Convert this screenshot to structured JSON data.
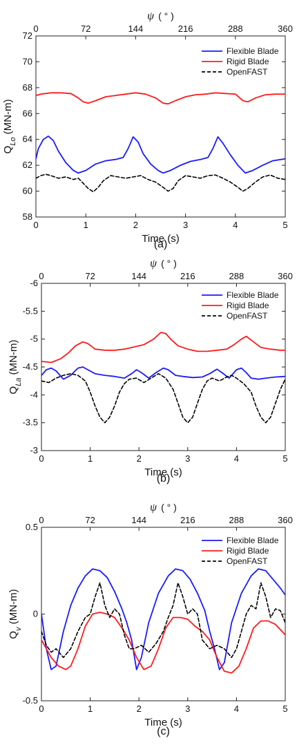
{
  "chart_data": [
    {
      "type": "line",
      "caption": "(a)",
      "xlabel": "Time (s)",
      "ylabel_main": "Q",
      "ylabel_sub": "Lo",
      "ylabel_unit": " (MN-m)",
      "top_axis_symbol": "ψ",
      "top_axis_unit": "( ° )",
      "xlim": [
        0,
        5
      ],
      "ylim": [
        58,
        72
      ],
      "y_reversed": false,
      "xticks": [
        "0",
        "1",
        "2",
        "3",
        "4",
        "5"
      ],
      "yticks": [
        "58",
        "60",
        "62",
        "64",
        "66",
        "68",
        "70",
        "72"
      ],
      "top_ticks": [
        "0",
        "72",
        "144",
        "216",
        "288",
        "360"
      ],
      "colors": {
        "Flexible Blade": "#1a1aff",
        "Rigid Blade": "#ff1a1a",
        "OpenFAST": "#000000"
      },
      "series": [
        {
          "name": "Flexible Blade",
          "x": [
            0,
            0.05,
            0.15,
            0.25,
            0.35,
            0.45,
            0.6,
            0.75,
            0.85,
            1.0,
            1.2,
            1.4,
            1.6,
            1.75,
            1.85,
            1.95,
            2.05,
            2.15,
            2.3,
            2.45,
            2.55,
            2.7,
            2.9,
            3.1,
            3.3,
            3.45,
            3.55,
            3.65,
            3.75,
            3.9,
            4.05,
            4.2,
            4.35,
            4.55,
            4.75,
            5.0
          ],
          "y": [
            62.5,
            63.3,
            64.0,
            64.25,
            63.9,
            63.1,
            62.2,
            61.6,
            61.4,
            61.6,
            62.1,
            62.35,
            62.45,
            62.6,
            63.3,
            64.2,
            63.8,
            62.9,
            62.1,
            61.6,
            61.4,
            61.6,
            62.0,
            62.3,
            62.45,
            62.6,
            63.3,
            64.2,
            63.7,
            62.8,
            62.0,
            61.4,
            61.6,
            62.0,
            62.35,
            62.5
          ]
        },
        {
          "name": "Rigid Blade",
          "x": [
            0,
            0.1,
            0.3,
            0.5,
            0.7,
            0.85,
            0.95,
            1.05,
            1.2,
            1.4,
            1.6,
            1.8,
            2.0,
            2.2,
            2.4,
            2.55,
            2.65,
            2.8,
            3.0,
            3.2,
            3.4,
            3.6,
            3.8,
            4.0,
            4.15,
            4.25,
            4.4,
            4.6,
            4.8,
            5.0
          ],
          "y": [
            67.4,
            67.5,
            67.6,
            67.6,
            67.55,
            67.2,
            66.9,
            66.8,
            67.0,
            67.3,
            67.4,
            67.5,
            67.6,
            67.5,
            67.2,
            66.8,
            66.75,
            67.0,
            67.3,
            67.45,
            67.5,
            67.6,
            67.55,
            67.5,
            67.0,
            66.9,
            67.2,
            67.45,
            67.5,
            67.5
          ]
        },
        {
          "name": "OpenFAST",
          "x": [
            0,
            0.1,
            0.2,
            0.3,
            0.45,
            0.6,
            0.75,
            0.85,
            0.95,
            1.05,
            1.15,
            1.25,
            1.35,
            1.5,
            1.65,
            1.8,
            1.95,
            2.1,
            2.25,
            2.4,
            2.55,
            2.65,
            2.75,
            2.85,
            3.0,
            3.15,
            3.3,
            3.45,
            3.6,
            3.75,
            3.9,
            4.05,
            4.15,
            4.25,
            4.4,
            4.55,
            4.7,
            4.85,
            5.0
          ],
          "y": [
            61.0,
            61.2,
            61.3,
            61.2,
            61.0,
            61.1,
            60.9,
            61.0,
            60.6,
            60.2,
            59.95,
            60.3,
            60.8,
            61.2,
            61.1,
            61.0,
            61.1,
            61.2,
            60.9,
            60.7,
            60.3,
            60.0,
            60.2,
            60.8,
            61.2,
            61.1,
            61.0,
            61.2,
            61.25,
            61.0,
            60.7,
            60.3,
            60.0,
            60.2,
            60.7,
            61.1,
            61.25,
            61.0,
            60.9
          ]
        }
      ]
    },
    {
      "type": "line",
      "caption": "(b)",
      "xlabel": "Time (s)",
      "ylabel_main": "Q",
      "ylabel_sub": "La",
      "ylabel_unit": " (MN-m)",
      "top_axis_symbol": "ψ",
      "top_axis_unit": "( ° )",
      "xlim": [
        0,
        5
      ],
      "ylim": [
        -3,
        -6
      ],
      "y_reversed": true,
      "xticks": [
        "0",
        "1",
        "2",
        "3",
        "4",
        "5"
      ],
      "yticks": [
        "-3",
        "-3.5",
        "-4",
        "-4.5",
        "-5",
        "-5.5",
        "-6"
      ],
      "top_ticks": [
        "0",
        "72",
        "144",
        "216",
        "288",
        "360"
      ],
      "colors": {
        "Flexible Blade": "#1a1aff",
        "Rigid Blade": "#ff1a1a",
        "OpenFAST": "#000000"
      },
      "series": [
        {
          "name": "Flexible Blade",
          "x": [
            0,
            0.1,
            0.2,
            0.3,
            0.45,
            0.6,
            0.75,
            0.85,
            0.95,
            1.1,
            1.3,
            1.5,
            1.7,
            1.85,
            1.95,
            2.05,
            2.2,
            2.35,
            2.5,
            2.6,
            2.75,
            2.9,
            3.1,
            3.3,
            3.45,
            3.6,
            3.7,
            3.85,
            4.0,
            4.1,
            4.2,
            4.3,
            4.45,
            4.6,
            4.8,
            5.0
          ],
          "y": [
            -4.35,
            -4.45,
            -4.48,
            -4.43,
            -4.28,
            -4.35,
            -4.48,
            -4.5,
            -4.45,
            -4.38,
            -4.35,
            -4.33,
            -4.3,
            -4.38,
            -4.45,
            -4.4,
            -4.3,
            -4.4,
            -4.48,
            -4.45,
            -4.35,
            -4.33,
            -4.31,
            -4.32,
            -4.38,
            -4.46,
            -4.4,
            -4.3,
            -4.45,
            -4.48,
            -4.4,
            -4.3,
            -4.28,
            -4.3,
            -4.32,
            -4.33
          ]
        },
        {
          "name": "Rigid Blade",
          "x": [
            0,
            0.2,
            0.4,
            0.55,
            0.7,
            0.85,
            0.95,
            1.1,
            1.3,
            1.5,
            1.7,
            1.9,
            2.1,
            2.3,
            2.45,
            2.55,
            2.65,
            2.8,
            3.0,
            3.2,
            3.4,
            3.6,
            3.8,
            3.95,
            4.1,
            4.2,
            4.35,
            4.5,
            4.7,
            4.9,
            5.0
          ],
          "y": [
            -4.6,
            -4.58,
            -4.65,
            -4.75,
            -4.88,
            -4.95,
            -4.92,
            -4.82,
            -4.8,
            -4.8,
            -4.82,
            -4.86,
            -4.9,
            -5.0,
            -5.12,
            -5.1,
            -5.0,
            -4.88,
            -4.82,
            -4.78,
            -4.78,
            -4.8,
            -4.82,
            -4.9,
            -5.0,
            -5.05,
            -4.95,
            -4.85,
            -4.82,
            -4.8,
            -4.8
          ]
        },
        {
          "name": "OpenFAST",
          "x": [
            0,
            0.15,
            0.3,
            0.45,
            0.6,
            0.75,
            0.9,
            1.0,
            1.1,
            1.2,
            1.3,
            1.4,
            1.5,
            1.6,
            1.7,
            1.8,
            1.95,
            2.1,
            2.25,
            2.4,
            2.55,
            2.7,
            2.8,
            2.9,
            3.0,
            3.1,
            3.2,
            3.3,
            3.4,
            3.5,
            3.65,
            3.8,
            3.9,
            4.0,
            4.15,
            4.3,
            4.4,
            4.5,
            4.6,
            4.7,
            4.8,
            4.9,
            5.0
          ],
          "y": [
            -4.25,
            -4.22,
            -4.3,
            -4.35,
            -4.38,
            -4.35,
            -4.25,
            -4.05,
            -3.8,
            -3.6,
            -3.5,
            -3.6,
            -3.8,
            -4.05,
            -4.2,
            -4.28,
            -4.3,
            -4.22,
            -4.3,
            -4.38,
            -4.3,
            -4.1,
            -3.85,
            -3.6,
            -3.5,
            -3.6,
            -3.85,
            -4.1,
            -4.25,
            -4.3,
            -4.25,
            -4.32,
            -4.35,
            -4.3,
            -4.2,
            -4.05,
            -3.8,
            -3.6,
            -3.5,
            -3.6,
            -3.85,
            -4.1,
            -4.28
          ]
        }
      ]
    },
    {
      "type": "line",
      "caption": "(c)",
      "xlabel": "Time (s)",
      "ylabel_main": "Q",
      "ylabel_sub": "v",
      "ylabel_unit": " (MN-m)",
      "top_axis_symbol": "ψ",
      "top_axis_unit": "( ° )",
      "xlim": [
        0,
        5
      ],
      "ylim": [
        -0.5,
        0.5
      ],
      "y_reversed": false,
      "xticks": [
        "0",
        "1",
        "2",
        "3",
        "4",
        "5"
      ],
      "yticks": [
        "-0.5",
        "0",
        "0.5"
      ],
      "top_ticks": [
        "0",
        "72",
        "144",
        "216",
        "288",
        "360"
      ],
      "colors": {
        "Flexible Blade": "#1a1aff",
        "Rigid Blade": "#ff1a1a",
        "OpenFAST": "#000000"
      },
      "series": [
        {
          "name": "Flexible Blade",
          "x": [
            0,
            0.1,
            0.2,
            0.3,
            0.45,
            0.6,
            0.75,
            0.9,
            1.05,
            1.2,
            1.35,
            1.5,
            1.65,
            1.75,
            1.85,
            1.95,
            2.05,
            2.2,
            2.4,
            2.6,
            2.75,
            2.9,
            3.05,
            3.2,
            3.35,
            3.45,
            3.55,
            3.65,
            3.75,
            3.9,
            4.1,
            4.3,
            4.45,
            4.6,
            4.75,
            4.9,
            5.0
          ],
          "y": [
            0.0,
            -0.2,
            -0.32,
            -0.3,
            -0.1,
            0.05,
            0.15,
            0.22,
            0.26,
            0.25,
            0.21,
            0.13,
            0.03,
            -0.05,
            -0.15,
            -0.32,
            -0.25,
            -0.05,
            0.12,
            0.22,
            0.26,
            0.25,
            0.2,
            0.12,
            0.02,
            -0.1,
            -0.2,
            -0.32,
            -0.28,
            -0.05,
            0.12,
            0.22,
            0.26,
            0.25,
            0.2,
            0.15,
            0.11
          ]
        },
        {
          "name": "Rigid Blade",
          "x": [
            0,
            0.1,
            0.2,
            0.35,
            0.5,
            0.6,
            0.75,
            0.9,
            1.05,
            1.2,
            1.35,
            1.5,
            1.65,
            1.8,
            1.95,
            2.1,
            2.25,
            2.4,
            2.55,
            2.7,
            2.85,
            3.0,
            3.15,
            3.3,
            3.45,
            3.6,
            3.75,
            3.9,
            4.05,
            4.2,
            4.35,
            4.5,
            4.65,
            4.8,
            5.0
          ],
          "y": [
            -0.15,
            -0.2,
            -0.25,
            -0.3,
            -0.32,
            -0.3,
            -0.2,
            -0.07,
            0.0,
            0.01,
            0.0,
            -0.02,
            -0.08,
            -0.15,
            -0.25,
            -0.32,
            -0.3,
            -0.2,
            -0.08,
            -0.02,
            -0.02,
            -0.03,
            -0.07,
            -0.1,
            -0.15,
            -0.25,
            -0.33,
            -0.34,
            -0.3,
            -0.2,
            -0.08,
            -0.04,
            -0.04,
            -0.06,
            -0.12
          ]
        },
        {
          "name": "OpenFAST",
          "x": [
            0,
            0.1,
            0.2,
            0.3,
            0.45,
            0.6,
            0.75,
            0.9,
            1.0,
            1.1,
            1.2,
            1.3,
            1.4,
            1.5,
            1.6,
            1.7,
            1.8,
            1.9,
            2.05,
            2.2,
            2.35,
            2.5,
            2.6,
            2.7,
            2.8,
            2.9,
            3.0,
            3.1,
            3.2,
            3.3,
            3.45,
            3.6,
            3.75,
            3.9,
            4.0,
            4.1,
            4.2,
            4.3,
            4.4,
            4.5,
            4.6,
            4.7,
            4.8,
            4.9,
            5.0
          ],
          "y": [
            -0.1,
            -0.18,
            -0.22,
            -0.2,
            -0.25,
            -0.2,
            -0.1,
            -0.02,
            0.0,
            0.1,
            0.18,
            0.05,
            -0.02,
            0.03,
            0.0,
            -0.12,
            -0.2,
            -0.2,
            -0.18,
            -0.22,
            -0.17,
            -0.1,
            -0.02,
            0.05,
            0.18,
            0.1,
            0.0,
            0.03,
            0.0,
            -0.15,
            -0.2,
            -0.18,
            -0.2,
            -0.25,
            -0.2,
            -0.1,
            0.0,
            0.05,
            0.03,
            0.18,
            0.1,
            -0.02,
            0.03,
            0.02,
            -0.05
          ]
        }
      ]
    }
  ]
}
